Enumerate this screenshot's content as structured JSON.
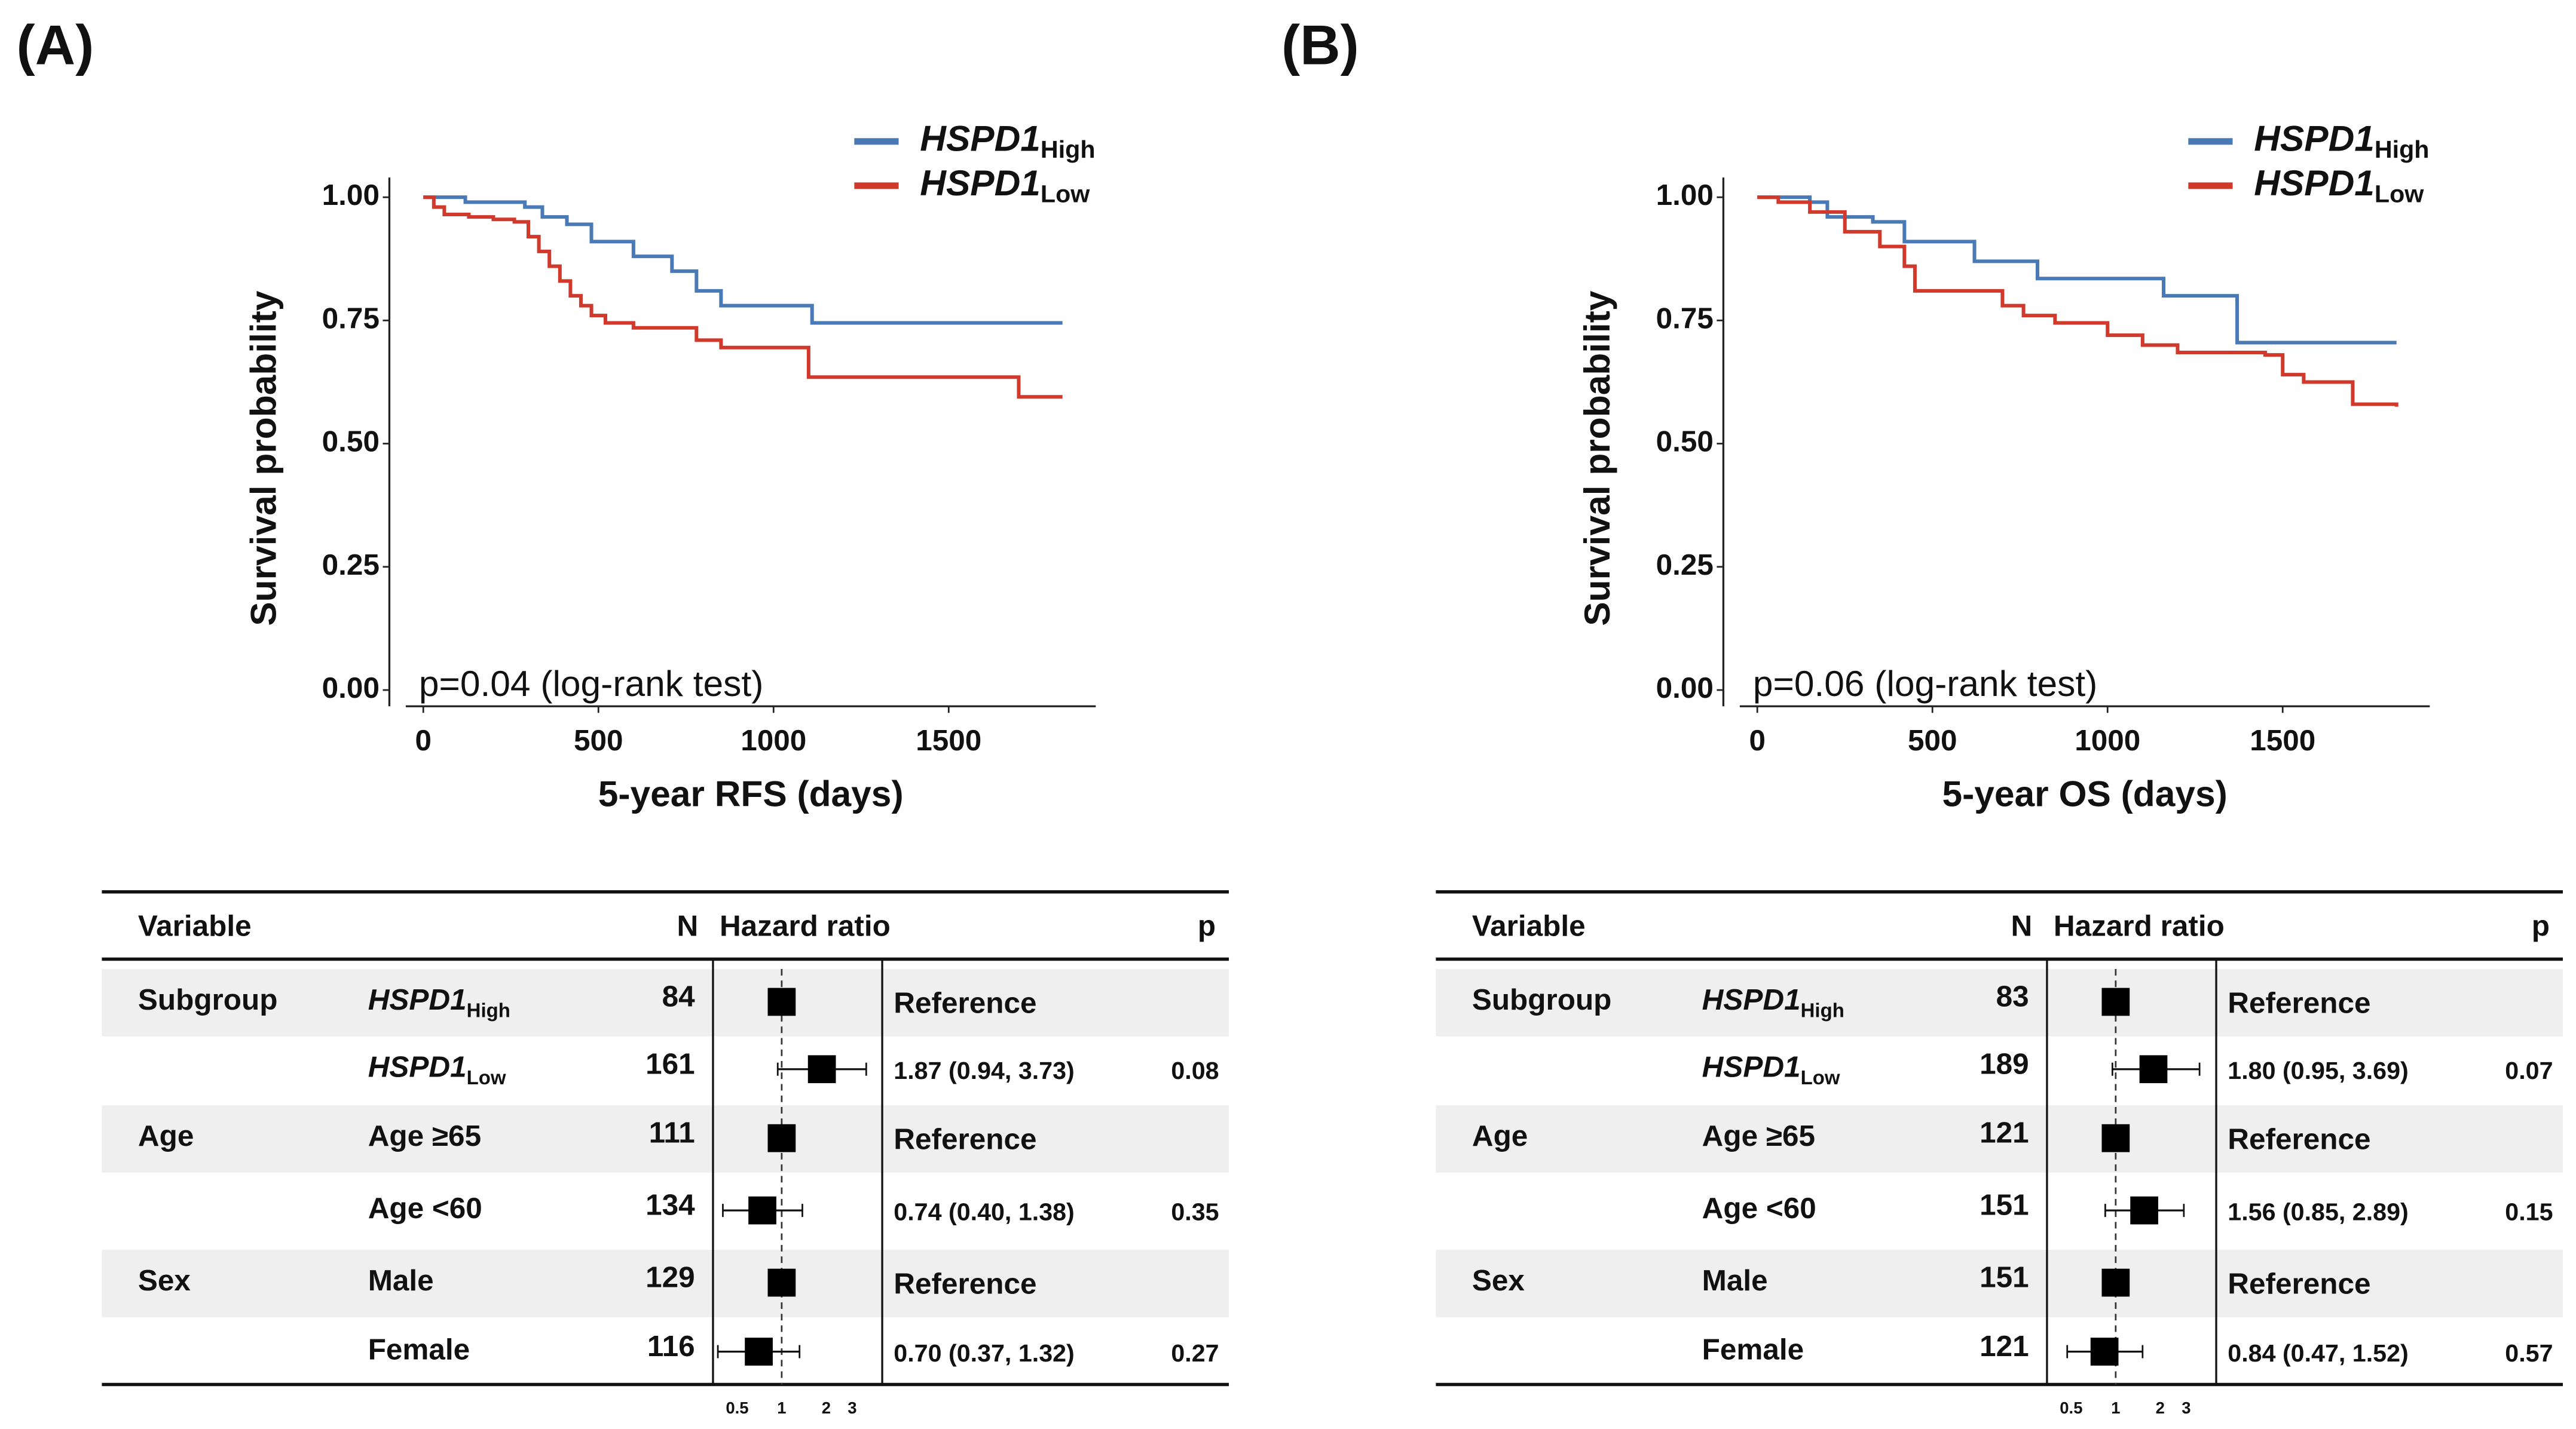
{
  "chart_data": [
    {
      "type": "line",
      "panel_label": "(A)",
      "x_label": "5-year RFS (days)",
      "y_label": "Survival probability",
      "annotation": "p=0.04 (log-rank test)",
      "legend": "top-right",
      "xlim": [
        -50,
        1920
      ],
      "xticks": [
        0,
        500,
        1000,
        1500
      ],
      "ylim": [
        -0.033,
        1.04
      ],
      "yticks": [
        {
          "value": 0,
          "label": "0.00"
        },
        0.25,
        {
          "value": 0.5,
          "label": "0.50"
        },
        0.75,
        {
          "value": 1,
          "label": "1.00"
        }
      ],
      "series": [
        {
          "name": "HSPD1",
          "name_subscript": "High",
          "color": "#4a7ab5",
          "x": [
            0,
            120,
            290,
            340,
            410,
            480,
            600,
            710,
            780,
            850,
            1110,
            1825
          ],
          "values": [
            1,
            0.99,
            0.98,
            0.96,
            0.945,
            0.91,
            0.88,
            0.85,
            0.81,
            0.78,
            0.745,
            0.745
          ]
        },
        {
          "name": "HSPD1",
          "name_subscript": "Low",
          "color": "#d03a2c",
          "x": [
            0,
            30,
            60,
            130,
            200,
            260,
            300,
            330,
            360,
            390,
            420,
            450,
            480,
            520,
            600,
            780,
            850,
            1100,
            1700,
            1825
          ],
          "values": [
            1,
            0.98,
            0.965,
            0.96,
            0.955,
            0.95,
            0.92,
            0.89,
            0.86,
            0.83,
            0.8,
            0.78,
            0.76,
            0.745,
            0.735,
            0.71,
            0.695,
            0.635,
            0.595,
            0.595
          ]
        }
      ]
    },
    {
      "type": "forest",
      "columns": [
        "Variable",
        "N",
        "Hazard ratio",
        "p"
      ],
      "log_x": true,
      "xlim": [
        0.4,
        4
      ],
      "xticks": [
        0.5,
        1,
        2,
        3
      ],
      "rows": [
        {
          "group": "Subgroup",
          "label": "HSPD1",
          "label_subscript": "High",
          "n": 84,
          "hr": 1,
          "ci": null,
          "hr_label": "Reference",
          "p": null
        },
        {
          "group": null,
          "label": "HSPD1",
          "label_subscript": "Low",
          "n": 161,
          "hr": 1.87,
          "ci": [
            0.94,
            3.73
          ],
          "hr_label": "1.87 (0.94, 3.73)",
          "p": 0.08
        },
        {
          "group": "Age",
          "label": "Age ≥65",
          "n": 111,
          "hr": 1,
          "ci": null,
          "hr_label": "Reference",
          "p": null
        },
        {
          "group": null,
          "label": "Age <60",
          "n": 134,
          "hr": 0.74,
          "ci": [
            0.4,
            1.38
          ],
          "hr_label": "0.74 (0.40, 1.38)",
          "p": 0.35
        },
        {
          "group": "Sex",
          "label": "Male",
          "n": 129,
          "hr": 1,
          "ci": null,
          "hr_label": "Reference",
          "p": null
        },
        {
          "group": null,
          "label": "Female",
          "n": 116,
          "hr": 0.7,
          "ci": [
            0.37,
            1.32
          ],
          "hr_label": "0.70 (0.37, 1.32)",
          "p": 0.27
        }
      ]
    },
    {
      "type": "line",
      "panel_label": "(B)",
      "x_label": "5-year OS (days)",
      "y_label": "Survival probability",
      "annotation": "p=0.06 (log-rank test)",
      "legend": "top-right",
      "xlim": [
        -50,
        1920
      ],
      "xticks": [
        0,
        500,
        1000,
        1500
      ],
      "ylim": [
        -0.033,
        1.04
      ],
      "yticks": [
        {
          "value": 0,
          "label": "0.00"
        },
        0.25,
        {
          "value": 0.5,
          "label": "0.50"
        },
        0.75,
        {
          "value": 1,
          "label": "1.00"
        }
      ],
      "series": [
        {
          "name": "HSPD1",
          "name_subscript": "High",
          "color": "#4a7ab5",
          "x": [
            0,
            150,
            200,
            330,
            420,
            620,
            800,
            1160,
            1370,
            1825
          ],
          "values": [
            1,
            0.99,
            0.96,
            0.95,
            0.91,
            0.87,
            0.835,
            0.8,
            0.705,
            0.705
          ]
        },
        {
          "name": "HSPD1",
          "name_subscript": "Low",
          "color": "#d03a2c",
          "x": [
            0,
            60,
            150,
            250,
            350,
            420,
            450,
            700,
            760,
            850,
            1000,
            1100,
            1200,
            1450,
            1500,
            1560,
            1700,
            1825
          ],
          "values": [
            1,
            0.99,
            0.97,
            0.93,
            0.9,
            0.86,
            0.81,
            0.78,
            0.76,
            0.745,
            0.72,
            0.7,
            0.685,
            0.68,
            0.64,
            0.625,
            0.58,
            0.575
          ]
        }
      ]
    },
    {
      "type": "forest",
      "columns": [
        "Variable",
        "N",
        "Hazard ratio",
        "p"
      ],
      "log_x": true,
      "xlim": [
        0.4,
        4
      ],
      "xticks": [
        0.5,
        1,
        2,
        3
      ],
      "rows": [
        {
          "group": "Subgroup",
          "label": "HSPD1",
          "label_subscript": "High",
          "n": 83,
          "hr": 1,
          "ci": null,
          "hr_label": "Reference",
          "p": null
        },
        {
          "group": null,
          "label": "HSPD1",
          "label_subscript": "Low",
          "n": 189,
          "hr": 1.8,
          "ci": [
            0.95,
            3.69
          ],
          "hr_label": "1.80 (0.95, 3.69)",
          "p": 0.07
        },
        {
          "group": "Age",
          "label": "Age ≥65",
          "n": 121,
          "hr": 1,
          "ci": null,
          "hr_label": "Reference",
          "p": null
        },
        {
          "group": null,
          "label": "Age <60",
          "n": 151,
          "hr": 1.56,
          "ci": [
            0.85,
            2.89
          ],
          "hr_label": "1.56 (0.85, 2.89)",
          "p": 0.15
        },
        {
          "group": "Sex",
          "label": "Male",
          "n": 151,
          "hr": 1,
          "ci": null,
          "hr_label": "Reference",
          "p": null
        },
        {
          "group": null,
          "label": "Female",
          "n": 121,
          "hr": 0.84,
          "ci": [
            0.47,
            1.52
          ],
          "hr_label": "0.84 (0.47, 1.52)",
          "p": 0.57
        }
      ]
    }
  ]
}
